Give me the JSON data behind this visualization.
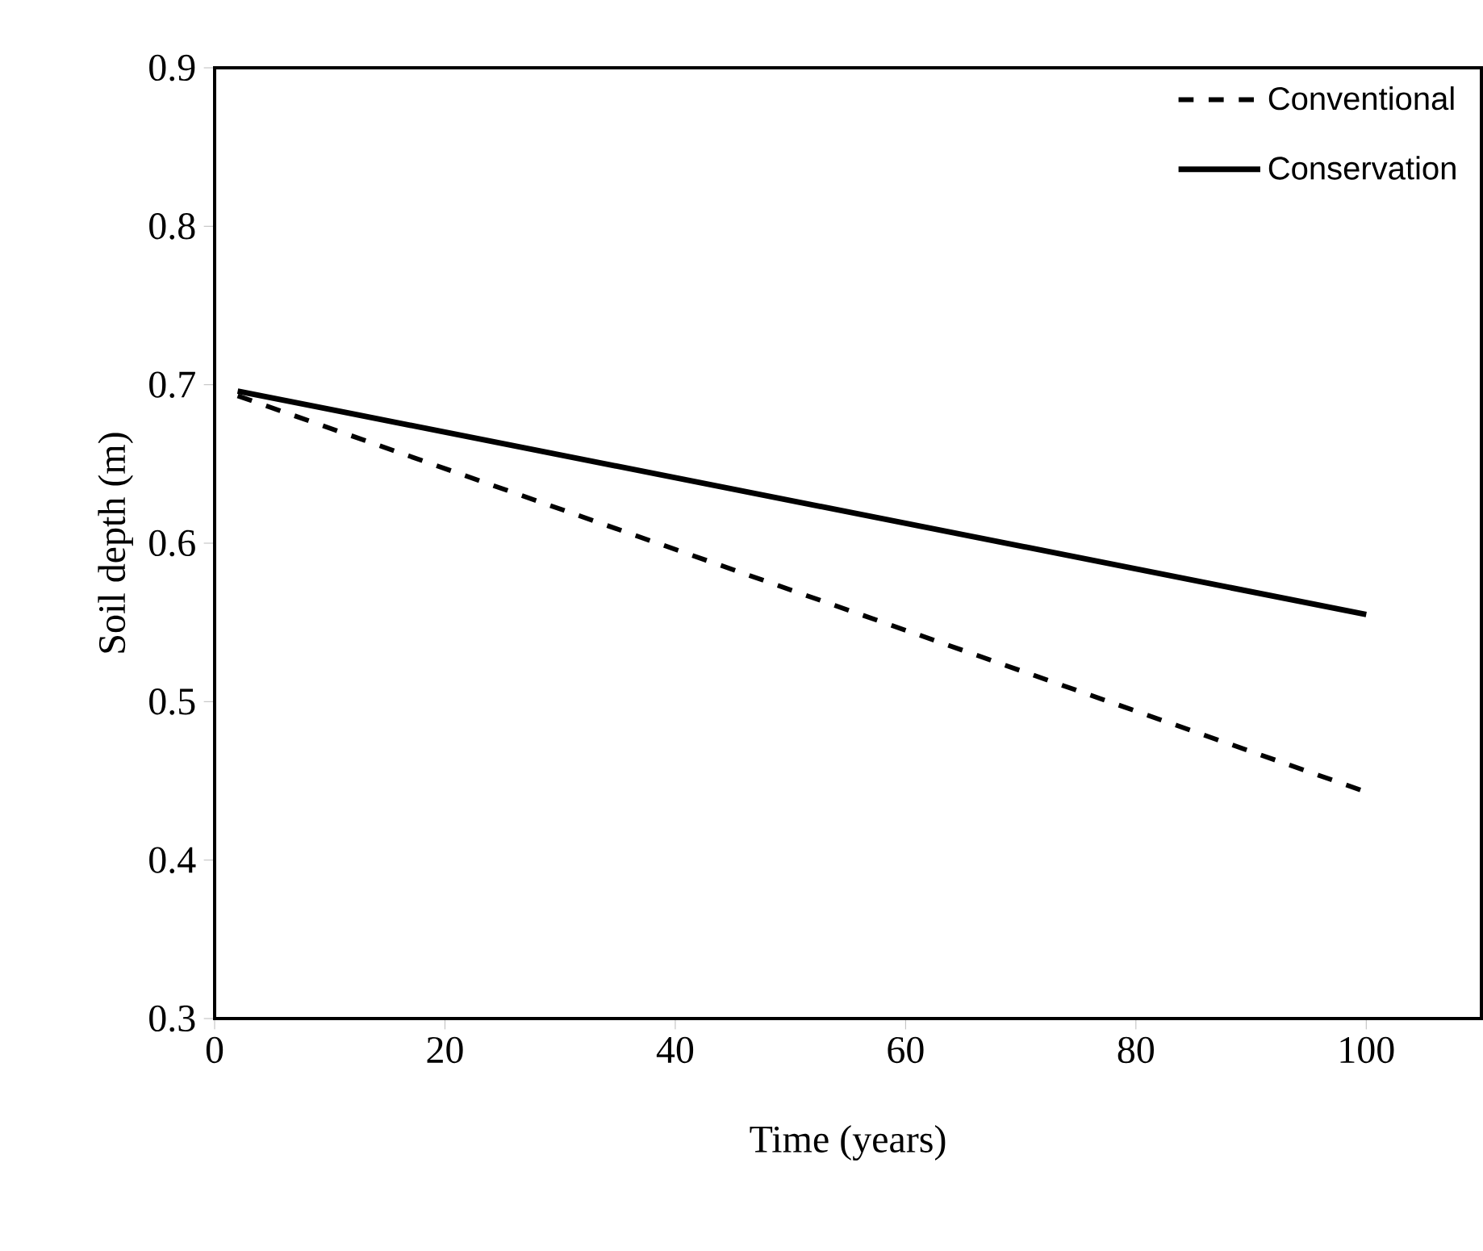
{
  "chart_data": {
    "type": "line",
    "xlabel": "Time (years)",
    "ylabel": "Soil depth (m)",
    "x": [
      2,
      100
    ],
    "series": [
      {
        "name": "Conventional",
        "color": "#000000",
        "line_style": "dashed",
        "values": [
          0.693,
          0.443
        ]
      },
      {
        "name": "Conservation",
        "color": "#000000",
        "line_style": "solid",
        "values": [
          0.696,
          0.555
        ]
      }
    ],
    "xlim": [
      0,
      110
    ],
    "xticks": [
      0,
      20,
      40,
      60,
      80,
      100
    ],
    "ylim": [
      0.3,
      0.9
    ],
    "yticks": [
      0.3,
      0.4,
      0.5,
      0.6,
      0.7,
      0.8,
      0.9
    ],
    "grid": false,
    "legend": "top right",
    "marker": "none"
  }
}
